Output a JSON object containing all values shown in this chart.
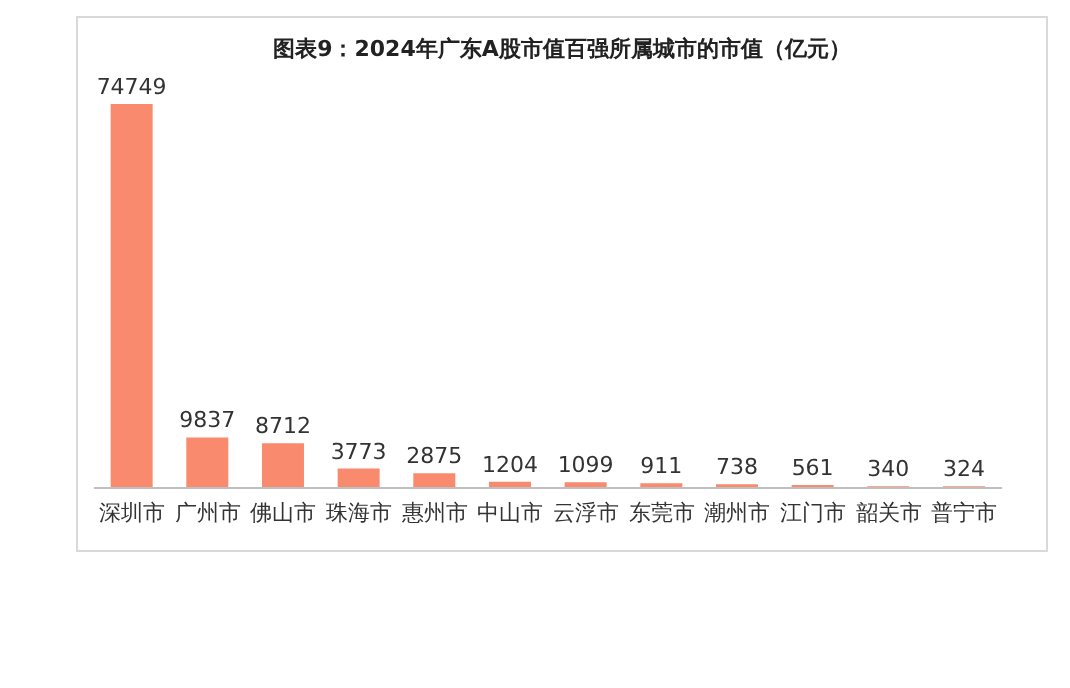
{
  "chart_data": {
    "type": "bar",
    "title": "图表9：2024年广东A股市值百强所属城市的市值（亿元）",
    "categories": [
      "深圳市",
      "广州市",
      "佛山市",
      "珠海市",
      "惠州市",
      "中山市",
      "云浮市",
      "东莞市",
      "潮州市",
      "江门市",
      "韶关市",
      "普宁市"
    ],
    "series": [
      {
        "color": "#f98a6e",
        "values": [
          74749,
          9837,
          8712,
          3773,
          2875,
          1204,
          1099,
          911,
          738,
          561,
          340,
          324
        ]
      }
    ],
    "data_labels": true
  }
}
